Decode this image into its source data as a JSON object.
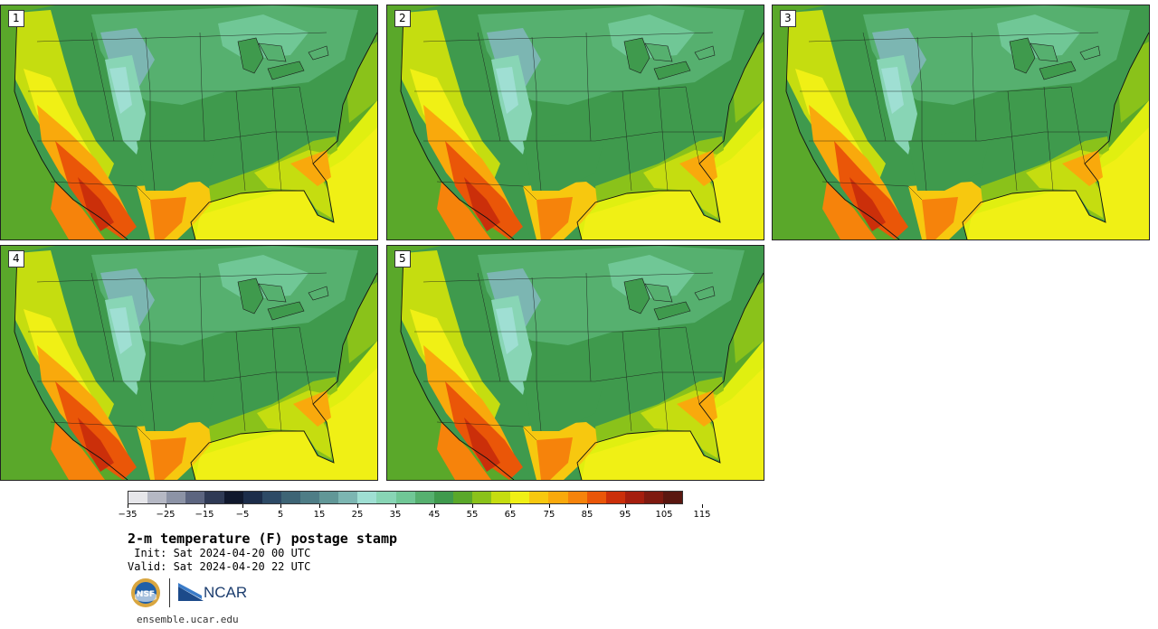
{
  "panels": [
    {
      "label": "1",
      "variant": 0
    },
    {
      "label": "2",
      "variant": 1
    },
    {
      "label": "3",
      "variant": 2
    },
    {
      "label": "4",
      "variant": 3
    },
    {
      "label": "5",
      "variant": 4
    }
  ],
  "colorbar": {
    "colors": [
      "#e6e6ea",
      "#b5b8c4",
      "#8c93a6",
      "#5c6580",
      "#2f3a55",
      "#10182d",
      "#1c2d4a",
      "#2d4a66",
      "#3d6475",
      "#4e7d86",
      "#619797",
      "#7cb6b2",
      "#9fdfd3",
      "#88d5b5",
      "#70c796",
      "#56b06f",
      "#3f9a4d",
      "#5aa82a",
      "#8ac21a",
      "#c5dd10",
      "#f0f015",
      "#f7c80f",
      "#f9a90c",
      "#f6830b",
      "#ea5608",
      "#cb2f0a",
      "#a51e0e",
      "#7e1a10",
      "#5a1710"
    ],
    "tick_labels": [
      "−35",
      "−25",
      "−15",
      "−5",
      "5",
      "15",
      "25",
      "35",
      "45",
      "55",
      "65",
      "75",
      "85",
      "95",
      "105",
      "115"
    ]
  },
  "title": "2-m temperature (F) postage stamp",
  "init": " Init: Sat 2024-04-20 00 UTC",
  "valid": "Valid: Sat 2024-04-20 22 UTC",
  "logos": {
    "nsf": "NSF",
    "ncar": "NCAR"
  },
  "site": "ensemble.ucar.edu"
}
